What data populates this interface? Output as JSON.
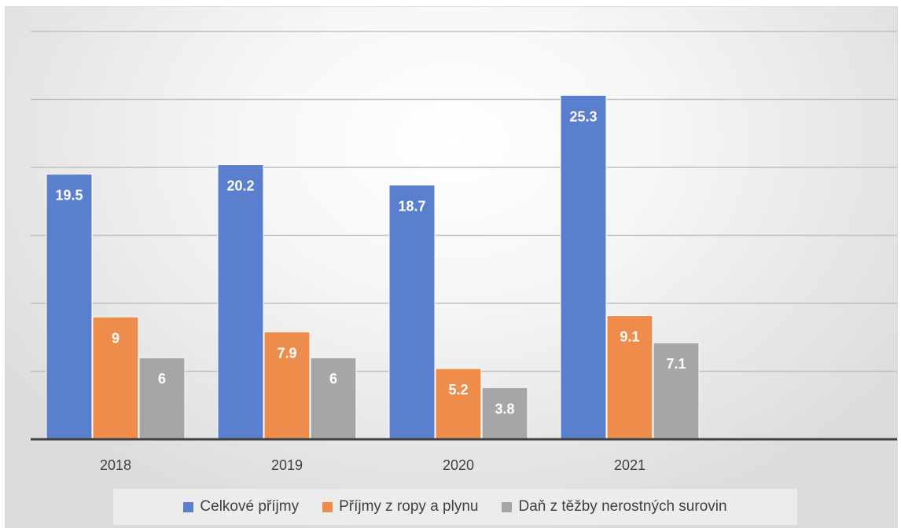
{
  "chart_data": {
    "type": "bar",
    "categories": [
      "2018",
      "2019",
      "2020",
      "2021"
    ],
    "series": [
      {
        "name": "Celkové příjmy",
        "color": "#5b7fcf",
        "values": [
          19.5,
          20.2,
          18.7,
          25.3
        ]
      },
      {
        "name": "Příjmy z ropy a plynu",
        "color": "#ee8c4c",
        "values": [
          9,
          7.9,
          5.2,
          9.1
        ]
      },
      {
        "name": "Daň z těžby nerostných surovin",
        "color": "#a6a6a6",
        "values": [
          6,
          6,
          3.8,
          7.1
        ]
      }
    ],
    "ylim": [
      0,
      30
    ],
    "y_gridlines": [
      5,
      10,
      15,
      20,
      25,
      30
    ],
    "y_tick_labels_shown": false,
    "grid": true,
    "legend_position": "bottom",
    "title": "",
    "xlabel": "",
    "ylabel": ""
  }
}
